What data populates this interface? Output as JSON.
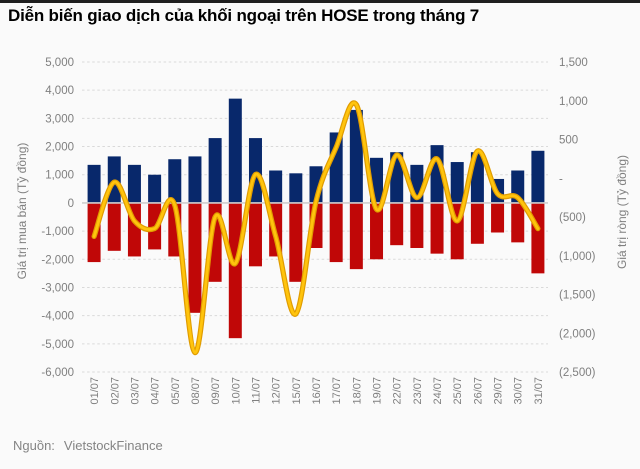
{
  "page": {
    "title": "Diễn biến giao dịch của khối ngoại trên HOSE trong tháng 7",
    "source_label": "Nguồn:",
    "source_value": "VietstockFinance"
  },
  "colors": {
    "background": "#FAFAFA",
    "top_border": "#1F1F1F",
    "buy_bar": "#08286B",
    "sell_bar": "#C00707",
    "net_line_core": "#FFC40D",
    "net_line_edge": "#E09C00",
    "gridline": "#D9D9D9",
    "zero_line": "#CFCFCF",
    "tick_text": "#7F7F7F",
    "title_text": "#000000"
  },
  "chart_data": {
    "type": "bar",
    "subtype": "dual-axis combo: stacked positive/negative bars + smoothed line",
    "title": "Diễn biến giao dịch của khối ngoại trên HOSE trong tháng 7",
    "grid": "horizontal dashed",
    "legend": "none",
    "categories": [
      "01/07",
      "02/07",
      "03/07",
      "04/07",
      "05/07",
      "08/07",
      "09/07",
      "10/07",
      "11/07",
      "12/07",
      "15/07",
      "16/07",
      "17/07",
      "18/07",
      "19/07",
      "22/07",
      "23/07",
      "24/07",
      "25/07",
      "26/07",
      "29/07",
      "30/07",
      "31/07"
    ],
    "series": [
      {
        "name": "buy-value",
        "type": "bar",
        "axis": "left",
        "color": "#08286B",
        "values": [
          1350,
          1650,
          1350,
          1000,
          1550,
          1650,
          2300,
          3700,
          2300,
          1150,
          1050,
          1300,
          2500,
          3300,
          1600,
          1800,
          1350,
          2050,
          1450,
          1800,
          850,
          1150,
          1850
        ]
      },
      {
        "name": "sell-value",
        "type": "bar",
        "axis": "left",
        "color": "#C00707",
        "values": [
          -2100,
          -1700,
          -1900,
          -1650,
          -1900,
          -3900,
          -2800,
          -4800,
          -2250,
          -1900,
          -2800,
          -1600,
          -2100,
          -2350,
          -2000,
          -1500,
          -1600,
          -1800,
          -2000,
          -1450,
          -1050,
          -1400,
          -2500
        ]
      },
      {
        "name": "net-value",
        "type": "line",
        "axis": "right",
        "color": "#FFC000",
        "smooth": true,
        "values": [
          -750,
          -50,
          -550,
          -650,
          -350,
          -2250,
          -500,
          -1100,
          50,
          -750,
          -1750,
          -300,
          400,
          950,
          -400,
          300,
          -250,
          250,
          -550,
          350,
          -200,
          -250,
          -650
        ]
      }
    ],
    "left_axis": {
      "label": "Giá trị mua bán (Tỷ đồng)",
      "min": -6000,
      "max": 5000,
      "step": 1000,
      "tick_labels": [
        "5,000",
        "4,000",
        "3,000",
        "2,000",
        "1,000",
        "0",
        "-1,000",
        "-2,000",
        "-3,000",
        "-4,000",
        "-5,000",
        "-6,000"
      ]
    },
    "right_axis": {
      "label": "Giá trị ròng (Tỷ đồng)",
      "min": -2500,
      "max": 1500,
      "step": 500,
      "tick_labels": [
        "1,500",
        "1,000",
        "500",
        "-",
        "(500)",
        "(1,000)",
        "(1,500)",
        "(2,000)",
        "(2,500)"
      ]
    }
  }
}
